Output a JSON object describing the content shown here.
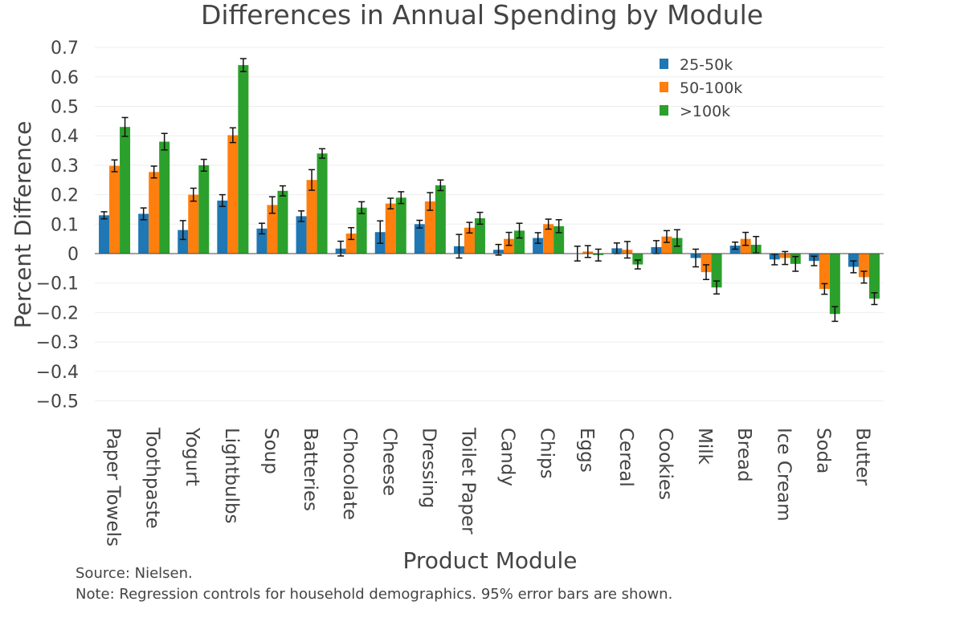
{
  "chart_data": {
    "type": "bar",
    "title": "Differences in Annual Spending by Module",
    "xlabel": "Product Module",
    "ylabel": "Percent Difference",
    "ylim": [
      -0.55,
      0.72
    ],
    "yticks": [
      0.7,
      0.6,
      0.5,
      0.4,
      0.3,
      0.2,
      0.1,
      0,
      -0.1,
      -0.2,
      -0.3,
      -0.4,
      -0.5
    ],
    "ytick_labels": [
      "0.7",
      "0.6",
      "0.5",
      "0.4",
      "0.3",
      "0.2",
      "0.1",
      "0",
      "−0.1",
      "−0.2",
      "−0.3",
      "−0.4",
      "−0.5"
    ],
    "grid": true,
    "legend_position": "top-right",
    "categories": [
      "Paper Towels",
      "Toothpaste",
      "Yogurt",
      "Lightbulbs",
      "Soup",
      "Batteries",
      "Chocolate",
      "Cheese",
      "Dressing",
      "Toilet Paper",
      "Candy",
      "Chips",
      "Eggs",
      "Cereal",
      "Cookies",
      "Milk",
      "Bread",
      "Ice Cream",
      "Soda",
      "Butter"
    ],
    "series": [
      {
        "name": "25-50k",
        "color": "#1f77b4",
        "values": [
          0.13,
          0.135,
          0.08,
          0.18,
          0.085,
          0.127,
          0.017,
          0.073,
          0.1,
          0.025,
          0.013,
          0.053,
          0.0,
          0.018,
          0.022,
          -0.015,
          0.027,
          -0.02,
          -0.025,
          -0.045
        ],
        "errors": [
          0.012,
          0.02,
          0.032,
          0.02,
          0.018,
          0.018,
          0.025,
          0.038,
          0.013,
          0.04,
          0.018,
          0.018,
          0.025,
          0.018,
          0.022,
          0.03,
          0.012,
          0.018,
          0.016,
          0.02
        ]
      },
      {
        "name": "50-100k",
        "color": "#ff7f0e",
        "values": [
          0.298,
          0.277,
          0.2,
          0.402,
          0.165,
          0.25,
          0.068,
          0.17,
          0.177,
          0.088,
          0.05,
          0.1,
          0.007,
          0.013,
          0.058,
          -0.063,
          0.05,
          -0.015,
          -0.12,
          -0.08
        ],
        "errors": [
          0.02,
          0.02,
          0.022,
          0.025,
          0.028,
          0.035,
          0.02,
          0.018,
          0.03,
          0.018,
          0.022,
          0.017,
          0.02,
          0.028,
          0.02,
          0.025,
          0.022,
          0.022,
          0.018,
          0.02
        ]
      },
      {
        "name": ">100k",
        "color": "#2ca02c",
        "values": [
          0.43,
          0.38,
          0.3,
          0.64,
          0.213,
          0.34,
          0.156,
          0.19,
          0.232,
          0.12,
          0.078,
          0.093,
          -0.005,
          -0.037,
          0.053,
          -0.115,
          0.03,
          -0.035,
          -0.205,
          -0.153
        ],
        "errors": [
          0.032,
          0.028,
          0.02,
          0.022,
          0.017,
          0.016,
          0.02,
          0.02,
          0.018,
          0.02,
          0.025,
          0.022,
          0.02,
          0.015,
          0.028,
          0.022,
          0.028,
          0.025,
          0.025,
          0.02
        ]
      }
    ]
  },
  "notes": {
    "source": "Source: Nielsen.",
    "note": "Note: Regression controls for household demographics. 95% error bars are shown."
  }
}
